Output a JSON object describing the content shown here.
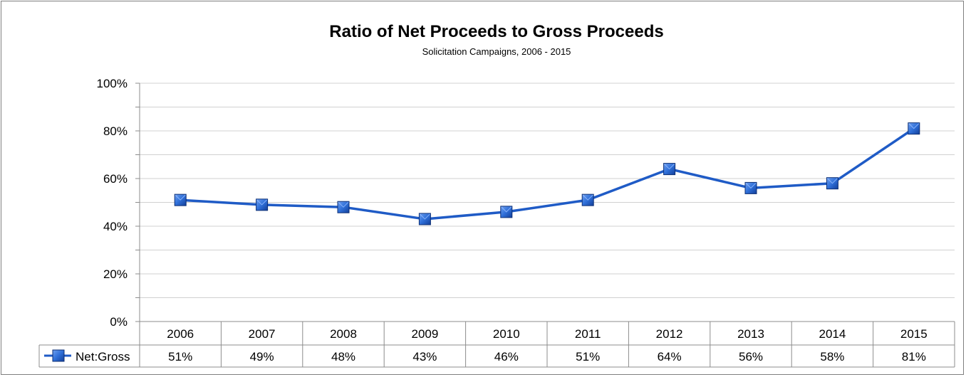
{
  "chart_data": {
    "type": "line",
    "title": "Ratio of Net Proceeds to Gross Proceeds",
    "subtitle": "Solicitation Campaigns, 2006 - 2015",
    "categories": [
      "2006",
      "2007",
      "2008",
      "2009",
      "2010",
      "2011",
      "2012",
      "2013",
      "2014",
      "2015"
    ],
    "series": [
      {
        "name": "Net:Gross",
        "values": [
          51,
          49,
          48,
          43,
          46,
          51,
          64,
          56,
          58,
          81
        ],
        "labels": [
          "51%",
          "49%",
          "48%",
          "43%",
          "46%",
          "51%",
          "64%",
          "56%",
          "58%",
          "81%"
        ],
        "color": "#1f5bc6",
        "marker": "square"
      }
    ],
    "y_ticks": [
      "0%",
      "20%",
      "40%",
      "60%",
      "80%",
      "100%"
    ],
    "ylim": [
      0,
      100
    ],
    "grid": true,
    "data_table": true,
    "xlabel": "",
    "ylabel": ""
  }
}
